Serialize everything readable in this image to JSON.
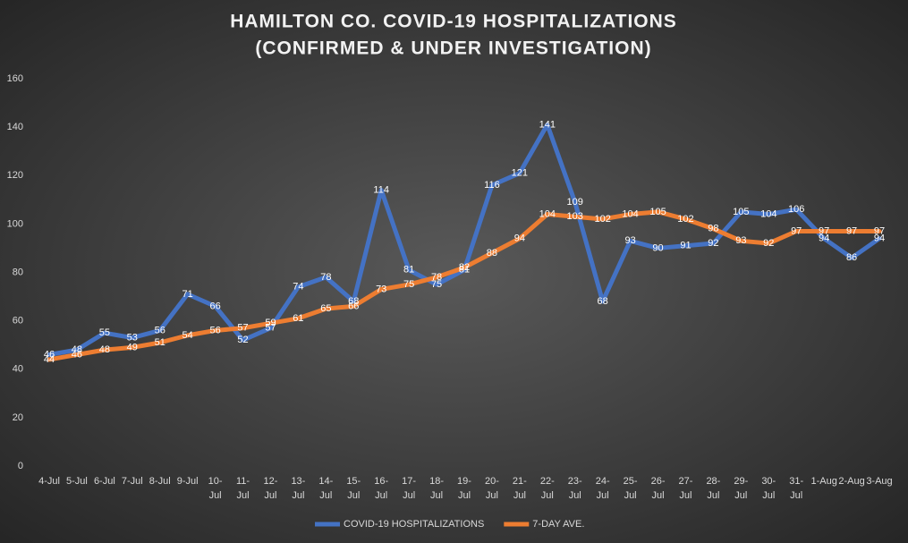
{
  "chart_data": {
    "type": "line",
    "title": [
      "HAMILTON CO. COVID-19 HOSPITALIZATIONS",
      "(CONFIRMED & UNDER INVESTIGATION)"
    ],
    "categories": [
      "4-Jul",
      "5-Jul",
      "6-Jul",
      "7-Jul",
      "8-Jul",
      "9-Jul",
      "10-Jul",
      "11-Jul",
      "12-Jul",
      "13-Jul",
      "14-Jul",
      "15-Jul",
      "16-Jul",
      "17-Jul",
      "18-Jul",
      "19-Jul",
      "20-Jul",
      "21-Jul",
      "22-Jul",
      "23-Jul",
      "24-Jul",
      "25-Jul",
      "26-Jul",
      "27-Jul",
      "28-Jul",
      "29-Jul",
      "30-Jul",
      "31-Jul",
      "1-Aug",
      "2-Aug",
      "3-Aug"
    ],
    "series": [
      {
        "name": "COVID-19 HOSPITALIZATIONS",
        "color": "#4472c4",
        "values": [
          46,
          48,
          55,
          53,
          56,
          71,
          66,
          52,
          57,
          74,
          78,
          68,
          114,
          81,
          75,
          81,
          116,
          121,
          141,
          109,
          68,
          93,
          90,
          91,
          92,
          105,
          104,
          106,
          94,
          86,
          94
        ]
      },
      {
        "name": "7-DAY AVE.",
        "color": "#ed7d31",
        "values": [
          44,
          46,
          48,
          49,
          51,
          54,
          56,
          57,
          59,
          61,
          65,
          66,
          73,
          75,
          78,
          82,
          88,
          94,
          104,
          103,
          102,
          104,
          105,
          102,
          98,
          93,
          92,
          97,
          97,
          97,
          97
        ]
      }
    ],
    "ylim": [
      0,
      160
    ],
    "yticks": [
      0,
      20,
      40,
      60,
      80,
      100,
      120,
      140,
      160
    ],
    "legend": "bottom"
  }
}
